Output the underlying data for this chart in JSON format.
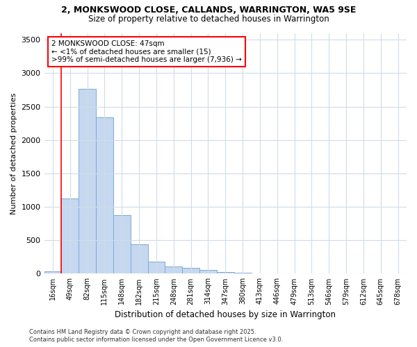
{
  "title1": "2, MONKSWOOD CLOSE, CALLANDS, WARRINGTON, WA5 9SE",
  "title2": "Size of property relative to detached houses in Warrington",
  "xlabel": "Distribution of detached houses by size in Warrington",
  "ylabel": "Number of detached properties",
  "bar_color": "#c5d8f0",
  "bar_edge_color": "#7baad4",
  "categories": [
    "16sqm",
    "49sqm",
    "82sqm",
    "115sqm",
    "148sqm",
    "182sqm",
    "215sqm",
    "248sqm",
    "281sqm",
    "314sqm",
    "347sqm",
    "380sqm",
    "413sqm",
    "446sqm",
    "479sqm",
    "513sqm",
    "546sqm",
    "579sqm",
    "612sqm",
    "645sqm",
    "678sqm"
  ],
  "values": [
    40,
    1120,
    2760,
    2340,
    880,
    440,
    185,
    105,
    85,
    60,
    30,
    10,
    8,
    4,
    2,
    1,
    0,
    0,
    0,
    0,
    0
  ],
  "ylim": [
    0,
    3600
  ],
  "yticks": [
    0,
    500,
    1000,
    1500,
    2000,
    2500,
    3000,
    3500
  ],
  "annotation_title": "2 MONKSWOOD CLOSE: 47sqm",
  "annotation_line1": "← <1% of detached houses are smaller (15)",
  "annotation_line2": ">99% of semi-detached houses are larger (7,936) →",
  "footer1": "Contains HM Land Registry data © Crown copyright and database right 2025.",
  "footer2": "Contains public sector information licensed under the Open Government Licence v3.0.",
  "bg_color": "#ffffff",
  "grid_color": "#d0dce8",
  "red_line_x": 0.5
}
